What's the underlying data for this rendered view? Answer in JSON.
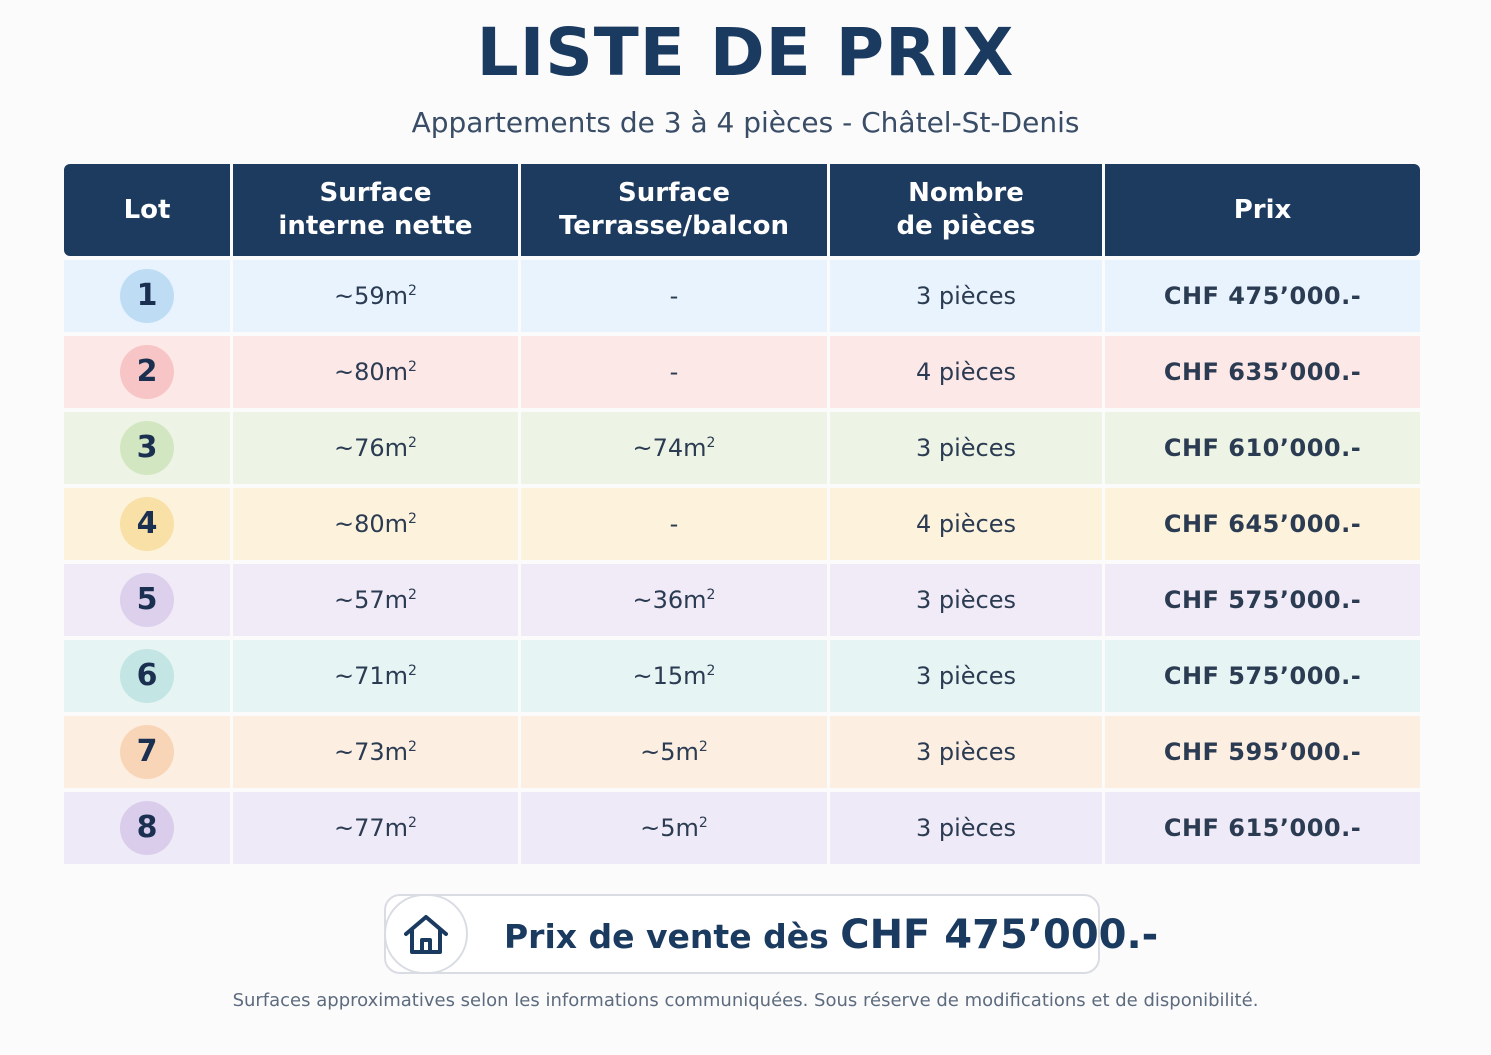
{
  "header": {
    "title": "LISTE DE PRIX",
    "subtitle": "Appartements de 3 à 4 pièces - Châtel-St-Denis"
  },
  "table": {
    "columns": [
      {
        "line1": "Lot",
        "line2": ""
      },
      {
        "line1": "Surface",
        "line2": "interne nette"
      },
      {
        "line1": "Surface",
        "line2": "Terrasse/balcon"
      },
      {
        "line1": "Nombre",
        "line2": "de pièces"
      },
      {
        "line1": "Prix",
        "line2": ""
      }
    ],
    "rows": [
      {
        "lot": "1",
        "interior": "~59m",
        "terrace": "-",
        "rooms": "3 pièces",
        "price": "CHF 475’000.-",
        "row_color": "#e8f3fd",
        "badge_color": "#bfdcf5"
      },
      {
        "lot": "2",
        "interior": "~80m",
        "terrace": "-",
        "rooms": "4 pièces",
        "price": "CHF 635’000.-",
        "row_color": "#fde8e8",
        "badge_color": "#f7c5c5"
      },
      {
        "lot": "3",
        "interior": "~76m",
        "terrace": "~74m",
        "rooms": "3 pièces",
        "price": "CHF 610’000.-",
        "row_color": "#edf4e5",
        "badge_color": "#d3e6c2"
      },
      {
        "lot": "4",
        "interior": "~80m",
        "terrace": "-",
        "rooms": "4 pièces",
        "price": "CHF 645’000.-",
        "row_color": "#fdf3dd",
        "badge_color": "#f9e0a6"
      },
      {
        "lot": "5",
        "interior": "~57m",
        "terrace": "~36m",
        "rooms": "3 pièces",
        "price": "CHF 575’000.-",
        "row_color": "#f1ebf7",
        "badge_color": "#dcd0ec"
      },
      {
        "lot": "6",
        "interior": "~71m",
        "terrace": "~15m",
        "rooms": "3 pièces",
        "price": "CHF 575’000.-",
        "row_color": "#e6f4f3",
        "badge_color": "#c3e5e3"
      },
      {
        "lot": "7",
        "interior": "~73m",
        "terrace": "~5m",
        "rooms": "3 pièces",
        "price": "CHF 595’000.-",
        "row_color": "#fdeee2",
        "badge_color": "#f9d5b8"
      },
      {
        "lot": "8",
        "interior": "~77m",
        "terrace": "~5m",
        "rooms": "3 pièces",
        "price": "CHF 615’000.-",
        "row_color": "#efeaf7",
        "badge_color": "#d9cdeb"
      }
    ],
    "area_exponent": "2"
  },
  "highlight": {
    "icon": "house-icon",
    "text": "Prix de vente dès",
    "amount": "CHF 475’000.-"
  },
  "footnote": "Surfaces approximatives selon les informations communiquées. Sous réserve de modifications et de disponibilité.",
  "colors": {
    "header_bg": "#1d3a5f",
    "text_dark": "#1b3a60"
  }
}
